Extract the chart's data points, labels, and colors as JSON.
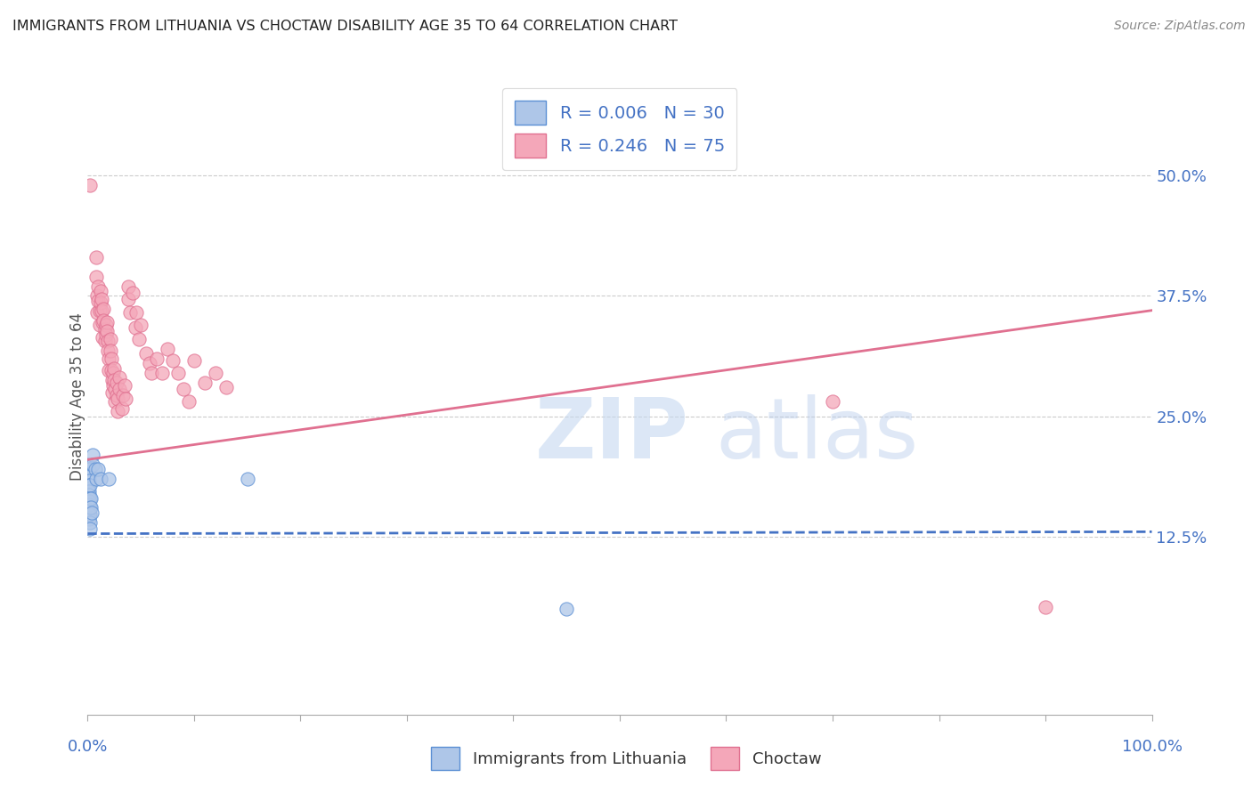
{
  "title": "IMMIGRANTS FROM LITHUANIA VS CHOCTAW DISABILITY AGE 35 TO 64 CORRELATION CHART",
  "source": "Source: ZipAtlas.com",
  "ylabel": "Disability Age 35 to 64",
  "right_yticks": [
    "50.0%",
    "37.5%",
    "25.0%",
    "12.5%"
  ],
  "right_ytick_vals": [
    0.5,
    0.375,
    0.25,
    0.125
  ],
  "watermark_zip": "ZIP",
  "watermark_atlas": "atlas",
  "legend_label1": "Immigrants from Lithuania",
  "legend_label2": "Choctaw",
  "blue_color": "#aec6e8",
  "pink_color": "#f4a7b9",
  "blue_edge_color": "#5b8fd4",
  "pink_edge_color": "#e07090",
  "blue_line_color": "#4472c4",
  "pink_line_color": "#e07090",
  "blue_scatter": [
    [
      0.0,
      0.2
    ],
    [
      0.001,
      0.195
    ],
    [
      0.001,
      0.188
    ],
    [
      0.001,
      0.183
    ],
    [
      0.001,
      0.178
    ],
    [
      0.001,
      0.172
    ],
    [
      0.001,
      0.168
    ],
    [
      0.001,
      0.162
    ],
    [
      0.001,
      0.158
    ],
    [
      0.001,
      0.153
    ],
    [
      0.001,
      0.148
    ],
    [
      0.001,
      0.143
    ],
    [
      0.002,
      0.178
    ],
    [
      0.002,
      0.165
    ],
    [
      0.002,
      0.155
    ],
    [
      0.002,
      0.148
    ],
    [
      0.002,
      0.14
    ],
    [
      0.002,
      0.133
    ],
    [
      0.003,
      0.165
    ],
    [
      0.003,
      0.155
    ],
    [
      0.004,
      0.15
    ],
    [
      0.005,
      0.21
    ],
    [
      0.005,
      0.2
    ],
    [
      0.007,
      0.195
    ],
    [
      0.008,
      0.185
    ],
    [
      0.01,
      0.195
    ],
    [
      0.012,
      0.185
    ],
    [
      0.02,
      0.185
    ],
    [
      0.15,
      0.185
    ],
    [
      0.45,
      0.05
    ]
  ],
  "pink_scatter": [
    [
      0.002,
      0.49
    ],
    [
      0.008,
      0.415
    ],
    [
      0.008,
      0.395
    ],
    [
      0.009,
      0.375
    ],
    [
      0.009,
      0.358
    ],
    [
      0.01,
      0.385
    ],
    [
      0.01,
      0.37
    ],
    [
      0.011,
      0.36
    ],
    [
      0.011,
      0.345
    ],
    [
      0.012,
      0.38
    ],
    [
      0.012,
      0.368
    ],
    [
      0.013,
      0.372
    ],
    [
      0.013,
      0.36
    ],
    [
      0.014,
      0.348
    ],
    [
      0.014,
      0.332
    ],
    [
      0.015,
      0.362
    ],
    [
      0.015,
      0.35
    ],
    [
      0.016,
      0.34
    ],
    [
      0.016,
      0.328
    ],
    [
      0.017,
      0.345
    ],
    [
      0.017,
      0.335
    ],
    [
      0.018,
      0.348
    ],
    [
      0.018,
      0.338
    ],
    [
      0.019,
      0.328
    ],
    [
      0.019,
      0.318
    ],
    [
      0.02,
      0.31
    ],
    [
      0.02,
      0.298
    ],
    [
      0.021,
      0.33
    ],
    [
      0.021,
      0.318
    ],
    [
      0.022,
      0.31
    ],
    [
      0.022,
      0.298
    ],
    [
      0.023,
      0.288
    ],
    [
      0.023,
      0.275
    ],
    [
      0.024,
      0.295
    ],
    [
      0.024,
      0.282
    ],
    [
      0.025,
      0.3
    ],
    [
      0.025,
      0.288
    ],
    [
      0.026,
      0.278
    ],
    [
      0.026,
      0.265
    ],
    [
      0.027,
      0.285
    ],
    [
      0.027,
      0.272
    ],
    [
      0.028,
      0.268
    ],
    [
      0.028,
      0.255
    ],
    [
      0.03,
      0.29
    ],
    [
      0.03,
      0.278
    ],
    [
      0.032,
      0.258
    ],
    [
      0.033,
      0.272
    ],
    [
      0.035,
      0.282
    ],
    [
      0.036,
      0.268
    ],
    [
      0.038,
      0.385
    ],
    [
      0.038,
      0.372
    ],
    [
      0.04,
      0.358
    ],
    [
      0.042,
      0.378
    ],
    [
      0.045,
      0.342
    ],
    [
      0.046,
      0.358
    ],
    [
      0.048,
      0.33
    ],
    [
      0.05,
      0.345
    ],
    [
      0.055,
      0.315
    ],
    [
      0.058,
      0.305
    ],
    [
      0.06,
      0.295
    ],
    [
      0.065,
      0.31
    ],
    [
      0.07,
      0.295
    ],
    [
      0.075,
      0.32
    ],
    [
      0.08,
      0.308
    ],
    [
      0.085,
      0.295
    ],
    [
      0.09,
      0.278
    ],
    [
      0.095,
      0.265
    ],
    [
      0.1,
      0.308
    ],
    [
      0.11,
      0.285
    ],
    [
      0.12,
      0.295
    ],
    [
      0.13,
      0.28
    ],
    [
      0.7,
      0.265
    ],
    [
      0.9,
      0.052
    ]
  ],
  "xlim": [
    0.0,
    1.0
  ],
  "ylim": [
    -0.06,
    0.6
  ],
  "blue_trend_x": [
    0.0,
    1.0
  ],
  "blue_trend_y": [
    0.128,
    0.13
  ],
  "pink_trend_x": [
    0.0,
    1.0
  ],
  "pink_trend_y": [
    0.205,
    0.36
  ]
}
